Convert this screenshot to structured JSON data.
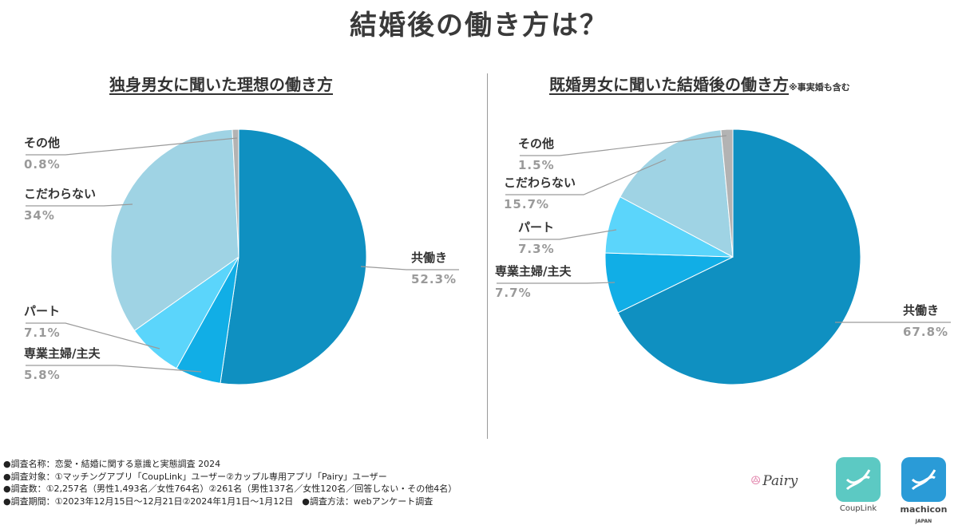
{
  "title": "結婚後の働き方は？",
  "chart_data": [
    {
      "type": "pie",
      "title": "独身男女に聞いた理想の働き方",
      "note": "",
      "categories": [
        "共働き",
        "専業主婦/主夫",
        "パート",
        "こだわらない",
        "その他"
      ],
      "values": [
        52.3,
        5.8,
        7.1,
        34,
        0.8
      ],
      "value_labels": [
        "52.3%",
        "5.8%",
        "7.1%",
        "34%",
        "0.8%"
      ],
      "colors": [
        "#0f90c1",
        "#11aee6",
        "#5bd5fb",
        "#9fd3e4",
        "#b3b3b3"
      ]
    },
    {
      "type": "pie",
      "title": "既婚男女に聞いた結婚後の働き方",
      "note": "※事実婚も含む",
      "categories": [
        "共働き",
        "専業主婦/主夫",
        "パート",
        "こだわらない",
        "その他"
      ],
      "values": [
        67.8,
        7.7,
        7.3,
        15.7,
        1.5
      ],
      "value_labels": [
        "67.8%",
        "7.7%",
        "7.3%",
        "15.7%",
        "1.5%"
      ],
      "colors": [
        "#0f90c1",
        "#11aee6",
        "#5bd5fb",
        "#9fd3e4",
        "#b3b3b3"
      ]
    }
  ],
  "footnotes": [
    "●調査名称：恋愛・結婚に関する意識と実態調査 2024",
    "●調査対象：①マッチングアプリ「CoupLink」ユーザー②カップル専用アプリ「Pairy」ユーザー",
    "●調査数：①2,257名（男性1,493名／女性764名）②261名（男性137名／女性120名／回答しない・その他4名）",
    "●調査期間：①2023年12月15日～12月21日②2024年1月1日～1月12日　●調査方法：webアンケート調査"
  ],
  "logos": {
    "pairy": "Pairy",
    "couplink": "CoupLink",
    "machicon": "machicon",
    "machicon_sub": "JAPAN",
    "couplink_color": "#5cc9c3",
    "machicon_color": "#2a9bd7"
  }
}
